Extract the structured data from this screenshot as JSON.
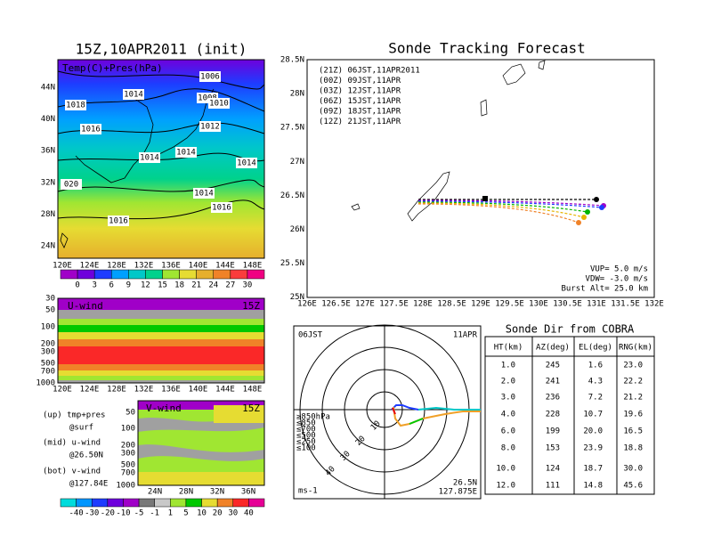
{
  "left_panel": {
    "title": "15Z,10APR2011 (init)",
    "overlay_label": "Temp(C)+Pres(hPa)",
    "lat_labels": [
      "44N",
      "40N",
      "36N",
      "32N",
      "28N",
      "24N"
    ],
    "lon_labels": [
      "120E",
      "124E",
      "128E",
      "132E",
      "136E",
      "140E",
      "144E",
      "148E"
    ],
    "isobar_labels": [
      "1006",
      "1014",
      "1008",
      "1018",
      "1010",
      "1012",
      "1016",
      "1014",
      "1014",
      "1014",
      "020",
      "1014",
      "1016",
      "1016"
    ],
    "colorbar_labels": [
      "0",
      "3",
      "6",
      "9",
      "12",
      "15",
      "18",
      "21",
      "24",
      "27",
      "30"
    ]
  },
  "u_wind_panel": {
    "title": "U-wind",
    "time": "15Z",
    "pressure_labels": [
      "30",
      "50",
      "100",
      "200",
      "300",
      "500",
      "700",
      "1000"
    ],
    "lon_labels": [
      "120E",
      "124E",
      "128E",
      "132E",
      "136E",
      "140E",
      "144E",
      "148E"
    ]
  },
  "notes": [
    "(up) tmp+pres",
    "@surf",
    "(mid) u-wind",
    "@26.50N",
    "(bot) v-wind",
    "@127.84E"
  ],
  "v_wind_panel": {
    "title": "V-wind",
    "time": "15Z",
    "pressure_labels": [
      "50",
      "100",
      "200",
      "300",
      "500",
      "700",
      "1000"
    ],
    "lat_labels": [
      "24N",
      "28N",
      "32N",
      "36N"
    ]
  },
  "wind_colorbar_labels": [
    "-40",
    "-30",
    "-20",
    "-10",
    "-5",
    "-1",
    "1",
    "5",
    "10",
    "20",
    "30",
    "40"
  ],
  "tracking_map": {
    "title": "Sonde Tracking Forecast",
    "lat_labels": [
      "28.5N",
      "28N",
      "27.5N",
      "27N",
      "26.5N",
      "26N",
      "25.5N",
      "25N"
    ],
    "lon_labels": [
      "126E",
      "126.5E",
      "127E",
      "127.5E",
      "128E",
      "128.5E",
      "129E",
      "129.5E",
      "130E",
      "130.5E",
      "131E",
      "131.5E",
      "132E"
    ],
    "legend": [
      "(21Z)  06JST,11APR2011",
      "(00Z)  09JST,11APR",
      "(03Z)  12JST,11APR",
      "(06Z)  15JST,11APR",
      "(09Z)  18JST,11APR",
      "(12Z)  21JST,11APR"
    ],
    "params": [
      "VUP= 5.0 m/s",
      "VDW= -3.0 m/s",
      "Burst Alt= 25.0 km"
    ]
  },
  "polar_plot": {
    "time": "06JST",
    "date": "11APR",
    "ring_labels": [
      "10",
      "20",
      "30",
      "40"
    ],
    "level_labels": [
      "≥850hPa",
      "≤850",
      "≤700",
      "≤500",
      "≤250",
      "≤100"
    ],
    "unit": "ms-1",
    "lat": "26.5N",
    "lon": "127.875E"
  },
  "table": {
    "title": "Sonde Dir from COBRA",
    "headers": [
      "HT(km)",
      "AZ(deg)",
      "EL(deg)",
      "RNG(km)"
    ],
    "rows": [
      [
        "1.0",
        "245",
        "1.6",
        "23.0"
      ],
      [
        "2.0",
        "241",
        "4.3",
        "22.2"
      ],
      [
        "3.0",
        "236",
        "7.2",
        "21.2"
      ],
      [
        "4.0",
        "228",
        "10.7",
        "19.6"
      ],
      [
        "6.0",
        "199",
        "20.0",
        "16.5"
      ],
      [
        "8.0",
        "153",
        "23.9",
        "18.8"
      ],
      [
        "10.0",
        "124",
        "18.7",
        "30.0"
      ],
      [
        "12.0",
        "111",
        "14.8",
        "45.6"
      ]
    ]
  }
}
